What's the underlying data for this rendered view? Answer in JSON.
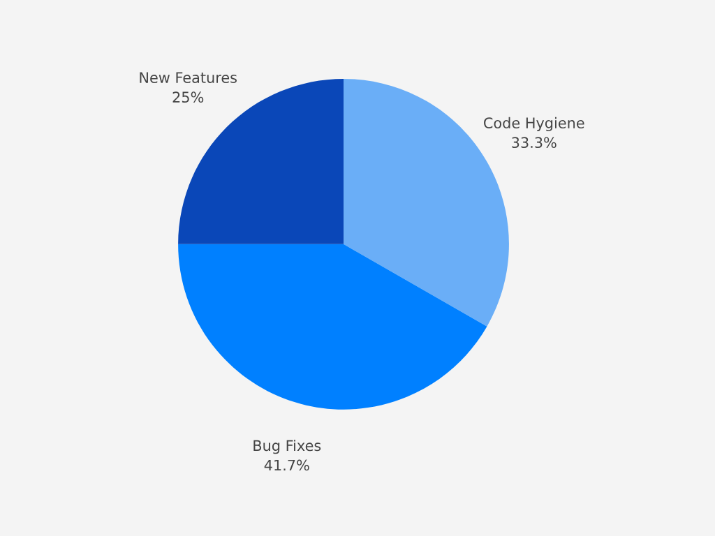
{
  "chart_data": {
    "type": "pie",
    "categories": [
      "Code Hygiene",
      "Bug Fixes",
      "New Features"
    ],
    "values": [
      33.3,
      41.7,
      25
    ],
    "value_labels": [
      "33.3%",
      "41.7%",
      "25%"
    ],
    "colors": [
      "#6aaef7",
      "#0080ff",
      "#0a47b8"
    ],
    "legend": false
  }
}
